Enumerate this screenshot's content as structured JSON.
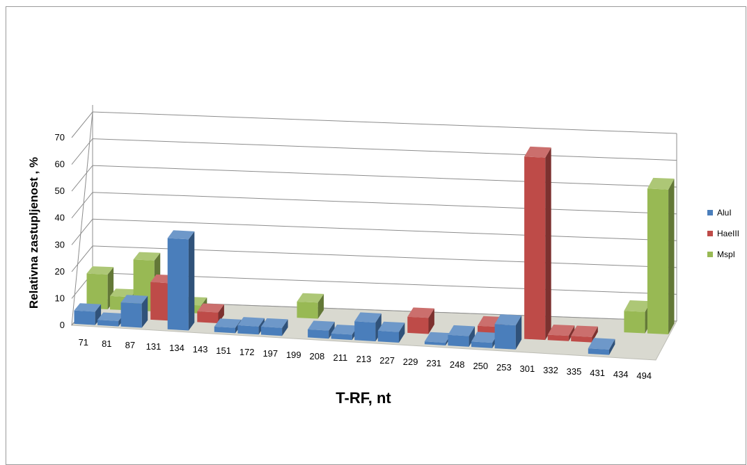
{
  "chart_data": {
    "type": "bar",
    "categories": [
      "71",
      "81",
      "87",
      "131",
      "134",
      "143",
      "151",
      "172",
      "197",
      "199",
      "208",
      "211",
      "213",
      "227",
      "229",
      "231",
      "248",
      "250",
      "253",
      "301",
      "332",
      "335",
      "431",
      "434",
      "494"
    ],
    "series": [
      {
        "name": "AluI",
        "color": "#4a7ebb",
        "values": [
          5,
          2,
          9,
          0,
          34,
          0,
          2,
          3,
          3,
          0,
          3,
          2,
          7,
          4,
          0,
          1,
          4,
          2,
          9,
          0,
          0,
          0,
          2,
          0,
          0
        ]
      },
      {
        "name": "HaeIII",
        "color": "#be4b48",
        "values": [
          0,
          0,
          0,
          14,
          0,
          4,
          0,
          0,
          0,
          0,
          0,
          0,
          0,
          0,
          6,
          0,
          0,
          4,
          0,
          68,
          2,
          2,
          0,
          0,
          0
        ]
      },
      {
        "name": "MspI",
        "color": "#98b954",
        "values": [
          13,
          5,
          19,
          0,
          3,
          0,
          0,
          0,
          0,
          6,
          0,
          0,
          0,
          0,
          0,
          0,
          0,
          0,
          0,
          0,
          0,
          0,
          0,
          8,
          54
        ]
      }
    ],
    "ylabel": "Relativna zastupljenost , %",
    "xlabel": "T-RF, nt",
    "ylim": [
      0,
      70
    ],
    "yticks": [
      "0",
      "10",
      "20",
      "30",
      "40",
      "50",
      "60",
      "70"
    ],
    "grid": true,
    "legend_position": "right"
  }
}
